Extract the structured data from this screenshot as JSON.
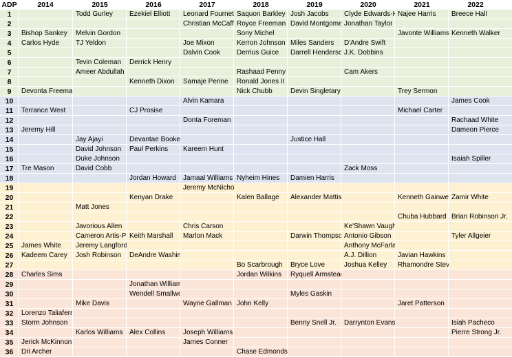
{
  "header": {
    "adp": "ADP",
    "years": [
      "2014",
      "2015",
      "2016",
      "2017",
      "2018",
      "2019",
      "2020",
      "2021",
      "2022"
    ]
  },
  "tiers": [
    {
      "from": 1,
      "to": 9,
      "color": "#e8f0dc"
    },
    {
      "from": 10,
      "to": 18,
      "color": "#dee3f0"
    },
    {
      "from": 19,
      "to": 27,
      "color": "#fdf1d2"
    },
    {
      "from": 28,
      "to": 36,
      "color": "#fbe5d9"
    }
  ],
  "rows": [
    {
      "adp": "1",
      "cells": [
        "",
        "Todd Gurley",
        "Ezekiel Elliott",
        "Leonard Fournette",
        "Saquon Barkley",
        "Josh Jacobs",
        "Clyde Edwards-Helaire",
        "Najee Harris",
        "Breece Hall"
      ]
    },
    {
      "adp": "2",
      "cells": [
        "",
        "",
        "",
        "Christian McCaffrey",
        "Royce Freeman",
        "David Montgomery",
        "Jonathan Taylor",
        "",
        ""
      ]
    },
    {
      "adp": "3",
      "cells": [
        "Bishop Sankey",
        "Melvin Gordon",
        "",
        "",
        "Sony Michel",
        "",
        "",
        "Javonte Williams",
        "Kenneth Walker"
      ]
    },
    {
      "adp": "4",
      "cells": [
        "Carlos Hyde",
        "TJ Yeldon",
        "",
        "Joe Mixon",
        "Kerron Johnson",
        "Miles Sanders",
        "D'Andre Swift",
        "",
        ""
      ]
    },
    {
      "adp": "5",
      "cells": [
        "",
        "",
        "",
        "Dalvin Cook",
        "Derrius Guice",
        "Darrell Henderson",
        "J.K. Dobbins",
        "",
        ""
      ]
    },
    {
      "adp": "6",
      "cells": [
        "",
        "Tevin Coleman",
        "Derrick Henry",
        "",
        "",
        "",
        "",
        "",
        ""
      ]
    },
    {
      "adp": "7",
      "cells": [
        "",
        "Ameer Abdullah",
        "",
        "",
        "Rashaad Penny",
        "",
        "Cam Akers",
        "",
        ""
      ]
    },
    {
      "adp": "8",
      "cells": [
        "",
        "",
        "Kenneth Dixon",
        "Samaje Perine",
        "Ronald Jones II",
        "",
        "",
        "",
        ""
      ]
    },
    {
      "adp": "9",
      "cells": [
        "Devonta Freeman",
        "",
        "",
        "",
        "Nick Chubb",
        "Devin Singletary",
        "",
        "Trey Sermon",
        ""
      ]
    },
    {
      "adp": "10",
      "cells": [
        "",
        "",
        "",
        "Alvin Kamara",
        "",
        "",
        "",
        "",
        "James Cook"
      ]
    },
    {
      "adp": "11",
      "cells": [
        "Terrance West",
        "",
        "CJ Prosise",
        "",
        "",
        "",
        "",
        "Michael Carter",
        ""
      ]
    },
    {
      "adp": "12",
      "cells": [
        "",
        "",
        "",
        "Donta Foreman",
        "",
        "",
        "",
        "",
        "Rachaad White"
      ]
    },
    {
      "adp": "13",
      "cells": [
        "Jeremy Hill",
        "",
        "",
        "",
        "",
        "",
        "",
        "",
        "Dameon Pierce"
      ]
    },
    {
      "adp": "14",
      "cells": [
        "",
        "Jay Ajayi",
        "Devantae Booker",
        "",
        "",
        "Justice Hall",
        "",
        "",
        ""
      ]
    },
    {
      "adp": "15",
      "cells": [
        "",
        "David Johnson",
        "Paul Perkins",
        "Kareem Hunt",
        "",
        "",
        "",
        "",
        ""
      ]
    },
    {
      "adp": "16",
      "cells": [
        "",
        "Duke Johnson",
        "",
        "",
        "",
        "",
        "",
        "",
        "Isaiah Spiller"
      ]
    },
    {
      "adp": "17",
      "cells": [
        "Tre Mason",
        "David Cobb",
        "",
        "",
        "",
        "",
        "Zack Moss",
        "",
        ""
      ]
    },
    {
      "adp": "18",
      "cells": [
        "",
        "",
        "Jordan Howard",
        "Jamaal Williams",
        "Nyheim Hines",
        "Damien Harris",
        "",
        "",
        ""
      ]
    },
    {
      "adp": "19",
      "cells": [
        "",
        "",
        "",
        "Jeremy McNichols",
        "",
        "",
        "",
        "",
        ""
      ]
    },
    {
      "adp": "20",
      "cells": [
        "",
        "",
        "Kenyan Drake",
        "",
        "Kalen Ballage",
        "Alexander Mattison",
        "",
        "Kenneth Gainwell",
        "Zamir White"
      ]
    },
    {
      "adp": "21",
      "cells": [
        "",
        "Matt Jones",
        "",
        "",
        "",
        "",
        "",
        "",
        ""
      ]
    },
    {
      "adp": "22",
      "cells": [
        "",
        "",
        "",
        "",
        "",
        "",
        "",
        "Chuba Hubbard",
        "Brian Robinson Jr."
      ]
    },
    {
      "adp": "23",
      "cells": [
        "",
        "Javorious Allen",
        "",
        "Chris Carson",
        "",
        "",
        "Ke'Shawn Vaughn",
        "",
        ""
      ]
    },
    {
      "adp": "24",
      "cells": [
        "",
        "Cameron Artis-Payne",
        "Keith Marshall",
        "Marlon Mack",
        "",
        "Darwin Thompson",
        "Antonio Gibson",
        "",
        "Tyler Allgeier"
      ]
    },
    {
      "adp": "25",
      "cells": [
        "James White",
        "Jeremy Langford",
        "",
        "",
        "",
        "",
        "Anthony McFarland Jr.",
        "",
        ""
      ]
    },
    {
      "adp": "26",
      "cells": [
        "Kadeem Carey",
        "Josh Robinson",
        "DeAndre Washington",
        "",
        "",
        "",
        "A.J. Dillion",
        "Javian Hawkins",
        ""
      ]
    },
    {
      "adp": "27",
      "cells": [
        "",
        "",
        "",
        "",
        "Bo Scarbrough",
        "Bryce Love",
        "Joshua Kelley",
        "Rhamondre Stevenson",
        ""
      ]
    },
    {
      "adp": "28",
      "cells": [
        "Charles Sims",
        "",
        "",
        "",
        "Jordan Wilkins",
        "Ryquell Armstead",
        "",
        "",
        ""
      ]
    },
    {
      "adp": "29",
      "cells": [
        "",
        "",
        "Jonathan Williams",
        "",
        "",
        "",
        "",
        "",
        ""
      ]
    },
    {
      "adp": "30",
      "cells": [
        "",
        "",
        "Wendell Smallwood",
        "",
        "",
        "Myles Gaskin",
        "",
        "",
        ""
      ]
    },
    {
      "adp": "31",
      "cells": [
        "",
        "Mike Davis",
        "",
        "Wayne Gallman",
        "John Kelly",
        "",
        "",
        "Jaret Patterson",
        ""
      ]
    },
    {
      "adp": "32",
      "cells": [
        "Lorenzo Taliaferro",
        "",
        "",
        "",
        "",
        "",
        "",
        "",
        ""
      ]
    },
    {
      "adp": "33",
      "cells": [
        "Storm Johnson",
        "",
        "",
        "",
        "",
        "Benny Snell Jr.",
        "Darrynton Evans",
        "",
        "Isiah Pacheco"
      ]
    },
    {
      "adp": "34",
      "cells": [
        "",
        "Karlos Williams",
        "Alex Collins",
        "Joseph Williams",
        "",
        "",
        "",
        "",
        "Pierre Strong Jr."
      ]
    },
    {
      "adp": "35",
      "cells": [
        "Jerick McKinnon",
        "",
        "",
        "James Conner",
        "",
        "",
        "",
        "",
        ""
      ]
    },
    {
      "adp": "36",
      "cells": [
        "Dri Archer",
        "",
        "",
        "",
        "Chase Edmonds",
        "",
        "",
        "",
        ""
      ]
    }
  ]
}
